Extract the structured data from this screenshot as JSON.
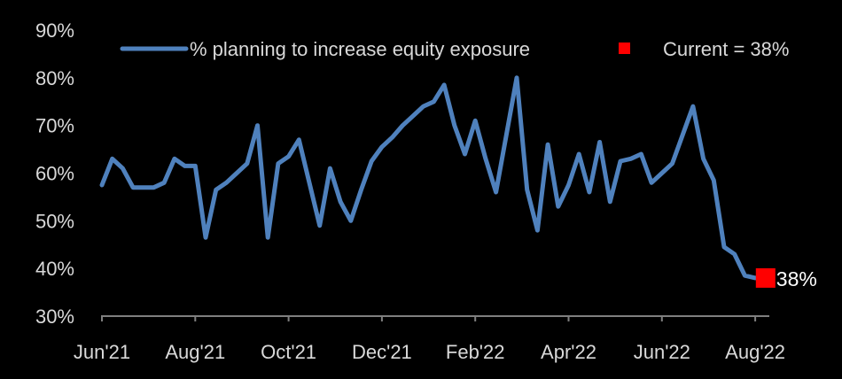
{
  "chart_data": {
    "type": "line",
    "title": "",
    "xlabel": "",
    "ylabel": "",
    "ylim": [
      30,
      90
    ],
    "yticks": [
      30,
      40,
      50,
      60,
      70,
      80,
      90
    ],
    "ytick_labels": [
      "30%",
      "40%",
      "50%",
      "60%",
      "70%",
      "80%",
      "90%"
    ],
    "xlim": [
      0,
      65
    ],
    "xticks": [
      0,
      9,
      18,
      27,
      36,
      45,
      54,
      63
    ],
    "xtick_labels": [
      "Jun'21",
      "Aug'21",
      "Oct'21",
      "Dec'21",
      "Feb'22",
      "Apr'22",
      "Jun'22",
      "Aug'22"
    ],
    "grid": false,
    "legend_position": "top",
    "series": [
      {
        "name": "% planning to increase equity exposure",
        "color": "#4f81bd",
        "x": [
          0,
          1,
          2,
          3,
          4,
          5,
          6,
          7,
          8,
          9,
          10,
          11,
          12,
          13,
          14,
          15,
          16,
          17,
          18,
          19,
          20,
          21,
          22,
          23,
          24,
          25,
          26,
          27,
          28,
          29,
          30,
          31,
          32,
          33,
          34,
          35,
          36,
          37,
          38,
          39,
          40,
          41,
          42,
          43,
          44,
          45,
          46,
          47,
          48,
          49,
          50,
          51,
          52,
          53,
          54,
          55,
          56,
          57,
          58,
          59,
          60,
          61,
          62,
          63,
          64
        ],
        "values": [
          57.5,
          63,
          61,
          57,
          57,
          57,
          58,
          63,
          61.5,
          61.5,
          46.5,
          56.5,
          58,
          60,
          62,
          70,
          46.5,
          62,
          63.5,
          67,
          58,
          49,
          61,
          54,
          50,
          56.5,
          62.5,
          65.5,
          67.5,
          70,
          72,
          74,
          75,
          78.5,
          70,
          64,
          71,
          63,
          56,
          68,
          80,
          56.5,
          48,
          66,
          53,
          57.5,
          64,
          56,
          66.5,
          54,
          62.5,
          63,
          64,
          58,
          60,
          62,
          68,
          74,
          63,
          58.5,
          44.5,
          43,
          38.5,
          38,
          38
        ]
      }
    ],
    "current_marker": {
      "label": "Current = 38%",
      "x": 64,
      "value": 38,
      "value_label": "38%",
      "color": "#ff0000"
    }
  }
}
